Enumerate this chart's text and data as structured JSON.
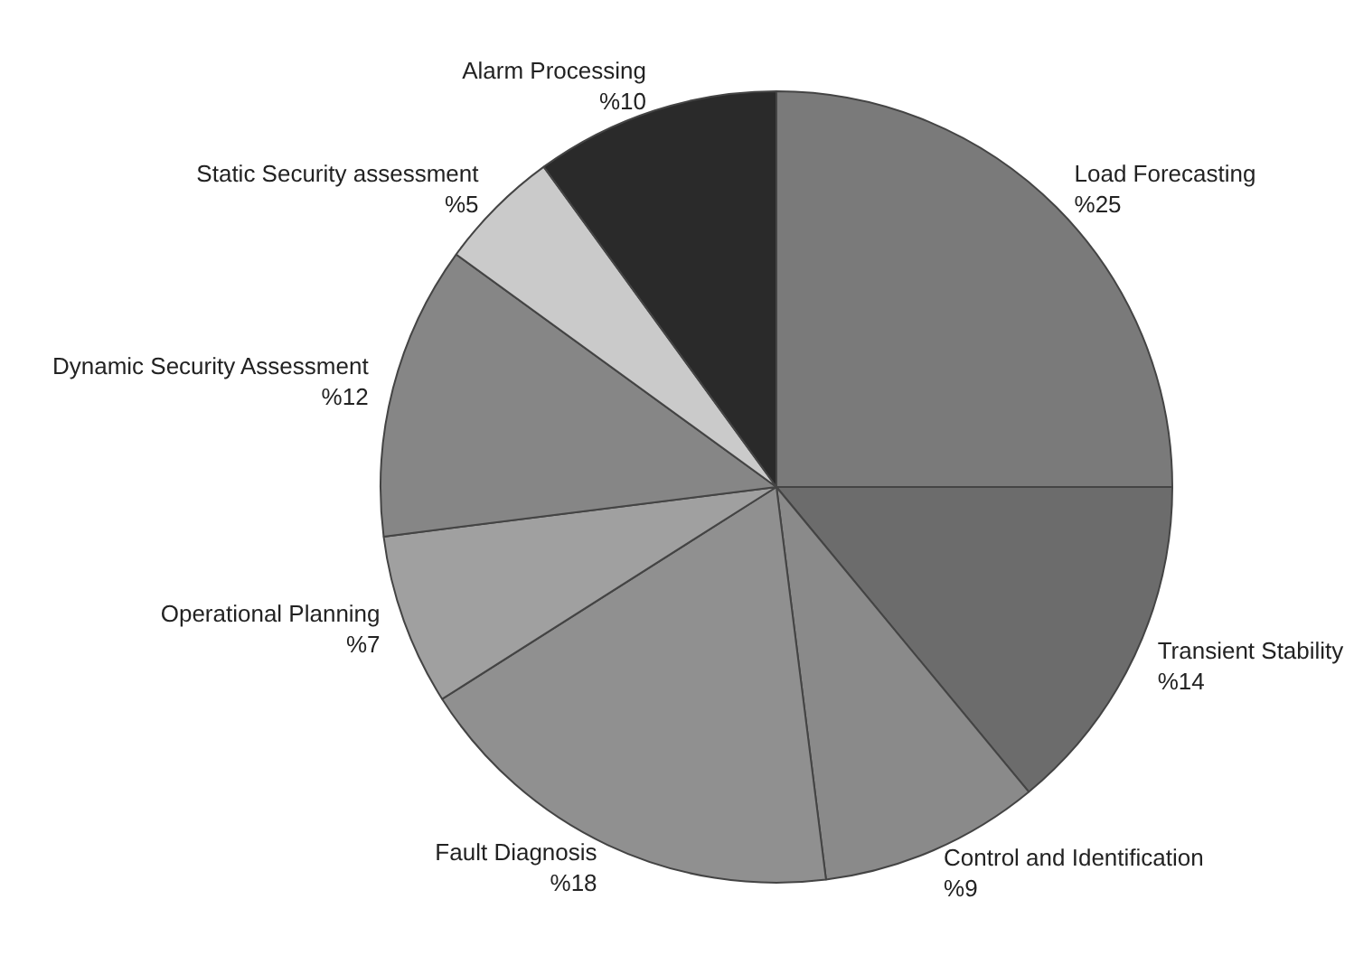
{
  "chart_data": {
    "type": "pie",
    "categories": [
      "Load Forecasting",
      "Transient Stability",
      "Control and Identification",
      "Fault Diagnosis",
      "Operational Planning",
      "Dynamic Security Assessment",
      "Static Security assessment",
      "Alarm Processing"
    ],
    "values": [
      25,
      14,
      9,
      18,
      7,
      12,
      5,
      10
    ],
    "colors": [
      "#7a7a7a",
      "#6c6c6c",
      "#8a8a8a",
      "#909090",
      "#a0a0a0",
      "#868686",
      "#cacaca",
      "#2a2a2a"
    ],
    "value_labels": [
      "%25",
      "%14",
      "%9",
      "%18",
      "%7",
      "%12",
      "%5",
      "%10"
    ],
    "legend": false
  }
}
